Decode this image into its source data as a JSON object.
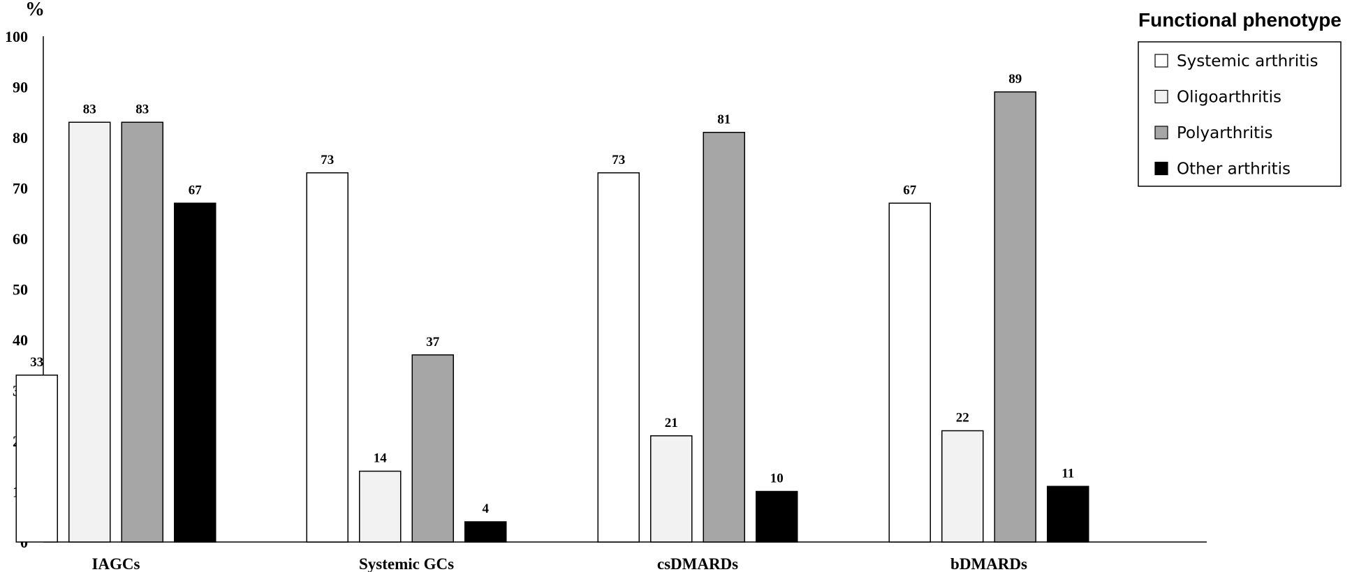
{
  "chart_data": {
    "type": "bar",
    "ylabel": "%",
    "ylim": [
      0,
      100
    ],
    "yticks": [
      0,
      10,
      20,
      30,
      40,
      50,
      60,
      70,
      80,
      90,
      100
    ],
    "categories": [
      "IAGCs",
      "Systemic GCs",
      "csDMARDs",
      "bDMARDs"
    ],
    "legend_title": "Functional phenotype",
    "legend_position": "top-right",
    "grid": false,
    "data_labels": true,
    "series": [
      {
        "name": "Systemic arthritis",
        "color": "#ffffff",
        "values": [
          33,
          73,
          73,
          67
        ]
      },
      {
        "name": "Oligoarthritis",
        "color": "#f2f2f2",
        "values": [
          83,
          14,
          21,
          22
        ]
      },
      {
        "name": "Polyarthritis",
        "color": "#a6a6a6",
        "values": [
          83,
          37,
          81,
          89
        ]
      },
      {
        "name": "Other arthritis",
        "color": "#000000",
        "values": [
          67,
          4,
          10,
          11
        ]
      }
    ]
  }
}
